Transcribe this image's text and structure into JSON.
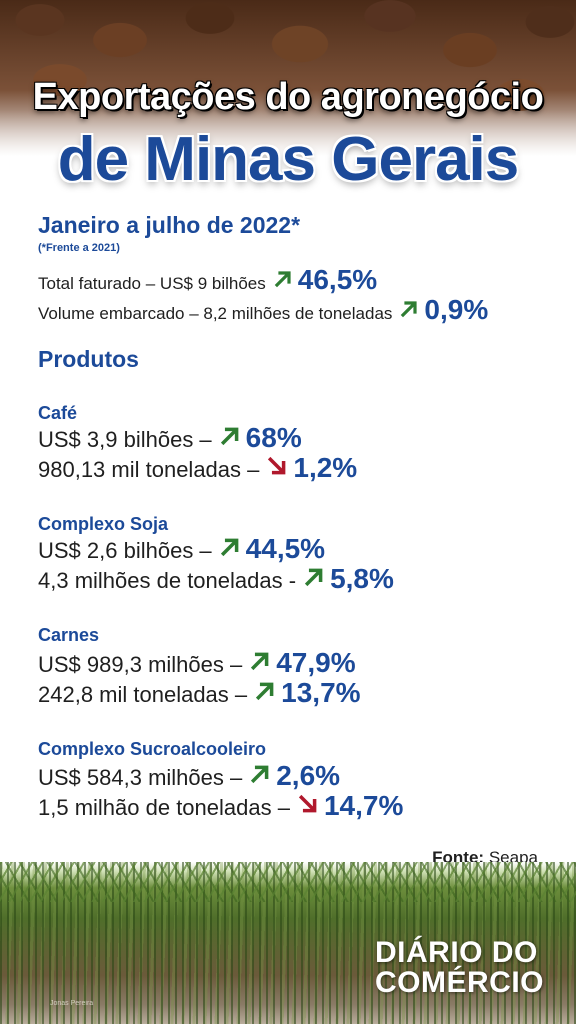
{
  "header": {
    "title_line1": "Exportações do agronegócio",
    "title_line2": "de Minas Gerais"
  },
  "period": {
    "title": "Janeiro a julho de 2022*",
    "note": "(*Frente a 2021)"
  },
  "summary": [
    {
      "label": "Total faturado – US$ 9 bilhões",
      "trend": "up",
      "value": "46,5%"
    },
    {
      "label": "Volume embarcado – 8,2 milhões de toneladas",
      "trend": "up",
      "value": "0,9%"
    }
  ],
  "products_heading": "Produtos",
  "products": [
    {
      "name": "Café",
      "lines": [
        {
          "label": "US$ 3,9 bilhões –",
          "trend": "up",
          "value": "68%"
        },
        {
          "label": "980,13 mil toneladas –",
          "trend": "down",
          "value": "1,2%"
        }
      ]
    },
    {
      "name": "Complexo Soja",
      "lines": [
        {
          "label": "US$ 2,6 bilhões –",
          "trend": "up",
          "value": "44,5%"
        },
        {
          "label": "4,3 milhões de toneladas -",
          "trend": "up",
          "value": "5,8%"
        }
      ]
    },
    {
      "name": "Carnes",
      "lines": [
        {
          "label": "US$ 989,3 milhões –",
          "trend": "up",
          "value": "47,9%"
        },
        {
          "label": "242,8 mil toneladas –",
          "trend": "up",
          "value": "13,7%"
        }
      ]
    },
    {
      "name": "Complexo Sucroalcooleiro",
      "lines": [
        {
          "label": "US$ 584,3 milhões –",
          "trend": "up",
          "value": "2,6%"
        },
        {
          "label": "1,5 milhão de toneladas –",
          "trend": "down",
          "value": "14,7%"
        }
      ]
    }
  ],
  "source": {
    "label": "Fonte:",
    "value": "Seapa"
  },
  "photo_credit": "Jonas Pereira",
  "logo": {
    "line1": "DIÁRIO DO",
    "line2": "COMÉRCIO"
  },
  "colors": {
    "accent_blue": "#1c4a99",
    "up_arrow": "#2e7d32",
    "down_arrow": "#b0182c"
  },
  "icons": {
    "up": "arrow-up-right-icon",
    "down": "arrow-down-right-icon"
  }
}
